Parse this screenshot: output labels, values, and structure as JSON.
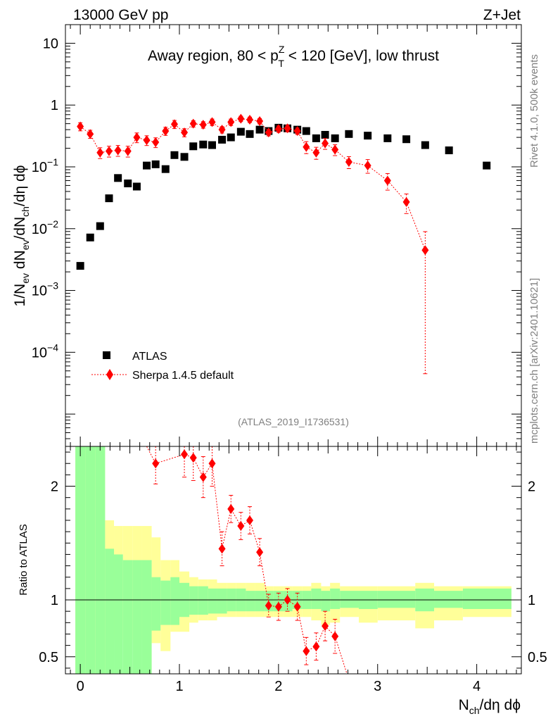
{
  "header": {
    "left": "13000 GeV pp",
    "right": "Z+Jet",
    "side_top": "Rivet 4.1.0,  500k events",
    "side_bottom": "mcplots.cern.ch [arXiv:2401.10621]",
    "analysis_id": "(ATLAS_2019_I1736531)"
  },
  "colors": {
    "data": "#000000",
    "mc": "#ff0000",
    "band_inner": "#99ff99",
    "band_outer": "#ffff99"
  },
  "chart_data": [
    {
      "type": "scatter",
      "title": "Away region, 80 < pTZ < 120 [GeV], low thrust",
      "title_parts": {
        "prefix": "Away region, 80 < p",
        "sup": "Z",
        "sub": "T",
        "suffix": " < 120 [GeV], low thrust"
      },
      "ylabel": "1/Nev dNev/dNch/dη dϕ",
      "yscale": "log",
      "ylim": [
        3e-06,
        20
      ],
      "xlim": [
        -0.15,
        4.45
      ],
      "yticks": [
        {
          "value": 10,
          "base": "10",
          "exp": ""
        },
        {
          "value": 1,
          "base": "1",
          "exp": ""
        },
        {
          "value": 0.1,
          "base": "10",
          "exp": "−1"
        },
        {
          "value": 0.01,
          "base": "10",
          "exp": "−2"
        },
        {
          "value": 0.001,
          "base": "10",
          "exp": "−3"
        },
        {
          "value": 0.0001,
          "base": "10",
          "exp": "−4"
        }
      ],
      "legend": [
        {
          "label": "ATLAS",
          "marker": "square"
        },
        {
          "label": "Sherpa 1.4.5 default",
          "marker": "diamond"
        }
      ],
      "legend_position": "lower-left",
      "series": [
        {
          "name": "ATLAS",
          "x": [
            0.0,
            0.1,
            0.2,
            0.29,
            0.38,
            0.48,
            0.57,
            0.67,
            0.76,
            0.86,
            0.95,
            1.05,
            1.14,
            1.24,
            1.33,
            1.43,
            1.52,
            1.62,
            1.71,
            1.81,
            1.9,
            2.0,
            2.09,
            2.19,
            2.28,
            2.38,
            2.47,
            2.57,
            2.71,
            2.9,
            3.1,
            3.29,
            3.48,
            3.72,
            4.1
          ],
          "y": [
            0.0025,
            0.0072,
            0.011,
            0.031,
            0.066,
            0.054,
            0.048,
            0.105,
            0.11,
            0.092,
            0.155,
            0.145,
            0.215,
            0.23,
            0.225,
            0.275,
            0.3,
            0.37,
            0.34,
            0.4,
            0.38,
            0.43,
            0.42,
            0.4,
            0.38,
            0.29,
            0.33,
            0.29,
            0.34,
            0.32,
            0.29,
            0.28,
            0.225,
            0.185,
            0.105
          ]
        },
        {
          "name": "Sherpa 1.4.5 default",
          "x": [
            0.0,
            0.1,
            0.2,
            0.29,
            0.38,
            0.48,
            0.57,
            0.67,
            0.76,
            0.86,
            0.95,
            1.05,
            1.14,
            1.24,
            1.33,
            1.43,
            1.52,
            1.62,
            1.71,
            1.81,
            1.9,
            2.0,
            2.09,
            2.19,
            2.28,
            2.38,
            2.47,
            2.57,
            2.71,
            2.9,
            3.1,
            3.29,
            3.48
          ],
          "y": [
            0.45,
            0.34,
            0.17,
            0.18,
            0.185,
            0.18,
            0.3,
            0.27,
            0.25,
            0.38,
            0.49,
            0.36,
            0.5,
            0.48,
            0.53,
            0.4,
            0.53,
            0.6,
            0.58,
            0.55,
            0.36,
            0.41,
            0.42,
            0.38,
            0.21,
            0.17,
            0.24,
            0.19,
            0.12,
            0.105,
            0.06,
            0.027,
            0.0045
          ],
          "yerr_rel": [
            0.15,
            0.15,
            0.2,
            0.2,
            0.2,
            0.2,
            0.18,
            0.18,
            0.18,
            0.15,
            0.15,
            0.15,
            0.12,
            0.12,
            0.12,
            0.12,
            0.12,
            0.1,
            0.1,
            0.1,
            0.12,
            0.12,
            0.12,
            0.12,
            0.22,
            0.22,
            0.2,
            0.2,
            0.22,
            0.25,
            0.3,
            0.35,
            0.99
          ]
        }
      ]
    },
    {
      "type": "ratio",
      "ylabel": "Ratio to ATLAS",
      "xlabel": "Nch/dη dϕ",
      "ylim": [
        0.35,
        2.35
      ],
      "xlim": [
        -0.15,
        4.45
      ],
      "yticks": [
        "0.5",
        "1",
        "2"
      ],
      "xticks": [
        "0",
        "1",
        "2",
        "3",
        "4"
      ],
      "reference": 1,
      "bands": {
        "edges": [
          -0.05,
          0.05,
          0.15,
          0.25,
          0.34,
          0.43,
          0.53,
          0.62,
          0.72,
          0.81,
          0.91,
          1.0,
          1.1,
          1.19,
          1.29,
          1.38,
          1.48,
          1.57,
          1.67,
          1.76,
          1.86,
          1.95,
          2.05,
          2.14,
          2.24,
          2.33,
          2.43,
          2.52,
          2.62,
          2.81,
          3.0,
          3.19,
          3.38,
          3.57,
          3.86,
          4.35
        ],
        "inner_up": [
          2.35,
          2.35,
          2.35,
          1.45,
          1.4,
          1.35,
          1.35,
          1.35,
          1.2,
          1.17,
          1.2,
          1.15,
          1.12,
          1.12,
          1.1,
          1.1,
          1.1,
          1.1,
          1.08,
          1.08,
          1.08,
          1.08,
          1.08,
          1.08,
          1.08,
          1.1,
          1.08,
          1.1,
          1.08,
          1.08,
          1.08,
          1.08,
          1.1,
          1.08,
          1.1
        ],
        "inner_dn": [
          0.35,
          0.35,
          0.35,
          0.35,
          0.35,
          0.35,
          0.35,
          0.35,
          0.73,
          0.78,
          0.78,
          0.85,
          0.87,
          0.87,
          0.88,
          0.88,
          0.9,
          0.9,
          0.9,
          0.9,
          0.9,
          0.9,
          0.9,
          0.92,
          0.92,
          0.92,
          0.9,
          0.92,
          0.93,
          0.92,
          0.93,
          0.93,
          0.9,
          0.93,
          0.92
        ],
        "outer_up": [
          2.35,
          2.35,
          2.35,
          1.7,
          1.65,
          1.65,
          1.65,
          1.65,
          1.55,
          1.35,
          1.35,
          1.25,
          1.2,
          1.18,
          1.18,
          1.15,
          1.15,
          1.15,
          1.15,
          1.15,
          1.12,
          1.12,
          1.12,
          1.12,
          1.12,
          1.15,
          1.12,
          1.15,
          1.12,
          1.12,
          1.12,
          1.12,
          1.15,
          1.12,
          1.12
        ],
        "outer_dn": [
          0.35,
          0.35,
          0.35,
          0.35,
          0.65,
          0.65,
          0.65,
          0.35,
          0.62,
          0.55,
          0.72,
          0.72,
          0.8,
          0.82,
          0.82,
          0.85,
          0.85,
          0.85,
          0.85,
          0.85,
          0.85,
          0.85,
          0.85,
          0.85,
          0.85,
          0.82,
          0.78,
          0.8,
          0.85,
          0.8,
          0.82,
          0.82,
          0.75,
          0.82,
          0.85
        ]
      },
      "series": [
        {
          "name": "Sherpa / ATLAS",
          "x": [
            0.76,
            1.05,
            1.14,
            1.24,
            1.33,
            1.43,
            1.52,
            1.62,
            1.71,
            1.81,
            1.9,
            2.0,
            2.09,
            2.19,
            2.28,
            2.38,
            2.47,
            2.57
          ],
          "y": [
            2.2,
            2.28,
            2.25,
            2.08,
            2.2,
            1.45,
            1.8,
            1.65,
            1.7,
            1.42,
            0.95,
            0.94,
            1.0,
            0.94,
            0.55,
            0.59,
            0.77,
            0.68
          ],
          "yerr": [
            0.18,
            0.2,
            0.2,
            0.18,
            0.2,
            0.15,
            0.12,
            0.12,
            0.12,
            0.12,
            0.1,
            0.12,
            0.1,
            0.12,
            0.12,
            0.12,
            0.13,
            0.15
          ]
        }
      ]
    }
  ]
}
